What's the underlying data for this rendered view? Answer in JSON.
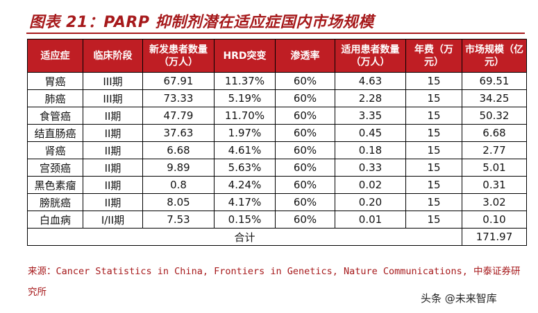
{
  "title": "图表 21：PARP 抑制剂潜在适应症国内市场规模",
  "table": {
    "headers": [
      "适应症",
      "临床阶段",
      "新发患者数量（万人）",
      "HRD突变",
      "渗透率",
      "适用患者数量（万人）",
      "年费（万元）",
      "市场规模（亿元）"
    ],
    "rows": [
      [
        "胃癌",
        "III期",
        "67.91",
        "11.37%",
        "60%",
        "4.63",
        "15",
        "69.51"
      ],
      [
        "肺癌",
        "III期",
        "73.33",
        "5.19%",
        "60%",
        "2.28",
        "15",
        "34.25"
      ],
      [
        "食管癌",
        "II期",
        "47.79",
        "11.70%",
        "60%",
        "3.35",
        "15",
        "50.32"
      ],
      [
        "结直肠癌",
        "II期",
        "37.63",
        "1.97%",
        "60%",
        "0.45",
        "15",
        "6.68"
      ],
      [
        "肾癌",
        "II期",
        "6.68",
        "4.61%",
        "60%",
        "0.18",
        "15",
        "2.77"
      ],
      [
        "宫颈癌",
        "II期",
        "9.89",
        "5.63%",
        "60%",
        "0.33",
        "15",
        "5.01"
      ],
      [
        "黑色素瘤",
        "II期",
        "0.8",
        "4.24%",
        "60%",
        "0.02",
        "15",
        "0.31"
      ],
      [
        "膀胱癌",
        "II期",
        "8.05",
        "4.17%",
        "60%",
        "0.20",
        "15",
        "3.02"
      ],
      [
        "白血病",
        "I/II期",
        "7.53",
        "0.15%",
        "60%",
        "0.01",
        "15",
        "0.10"
      ]
    ],
    "total_label": "合计",
    "total_value": "171.97"
  },
  "source": "来源：Cancer Statistics in China, Frontiers in Genetics, Nature Communications, 中泰证券研究所",
  "watermark": "头条 @未来智库",
  "colors": {
    "accent": "#bf1e24",
    "title": "#a6191b"
  }
}
